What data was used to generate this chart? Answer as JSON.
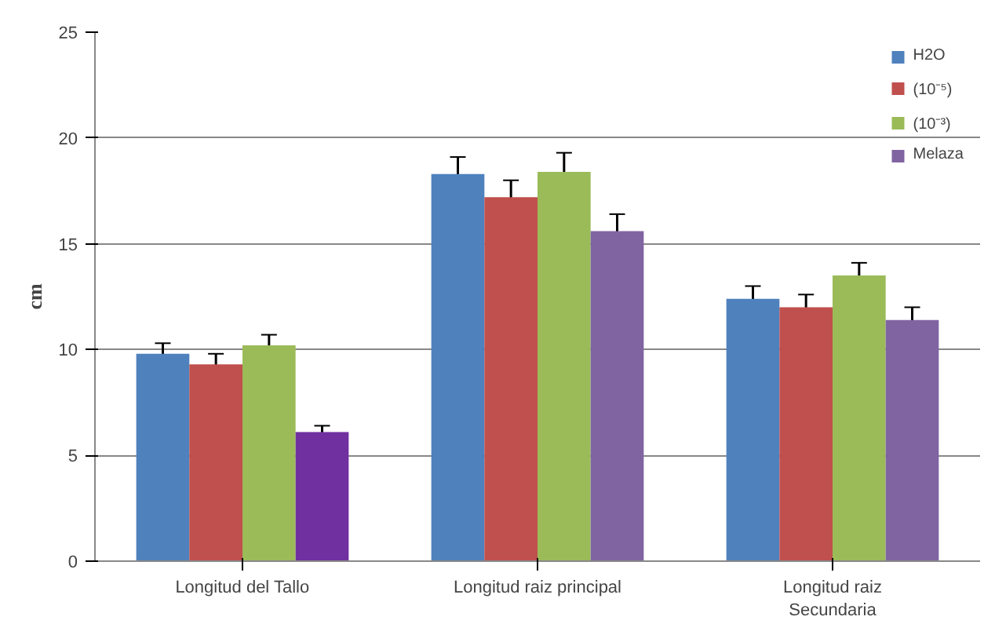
{
  "chart_data": {
    "type": "bar",
    "ylabel": "cm",
    "categories": [
      "Longitud del Tallo",
      "Longitud raiz principal",
      "Longitud raiz\nSecundaria"
    ],
    "series": [
      {
        "name": "H2O",
        "color": "#4f81bd",
        "values": [
          9.8,
          18.3,
          12.4
        ],
        "errors": [
          0.5,
          0.8,
          0.6
        ]
      },
      {
        "name": "(10⁻⁵)",
        "color": "#c0504d",
        "values": [
          9.3,
          17.2,
          12.0
        ],
        "errors": [
          0.5,
          0.8,
          0.6
        ]
      },
      {
        "name": "(10⁻³)",
        "color": "#9bbb59",
        "values": [
          10.2,
          18.4,
          13.5
        ],
        "errors": [
          0.5,
          0.9,
          0.6
        ]
      },
      {
        "name": "Melaza",
        "color": "#8064a2",
        "colors": [
          "#7030a0",
          "#8064a2",
          "#8064a2"
        ],
        "values": [
          6.1,
          15.6,
          11.4
        ],
        "errors": [
          0.3,
          0.8,
          0.6
        ]
      }
    ],
    "ylim": [
      0,
      25
    ],
    "yticks": [
      0,
      5,
      10,
      15,
      20,
      25
    ],
    "grid": "y",
    "legend": "top right"
  }
}
